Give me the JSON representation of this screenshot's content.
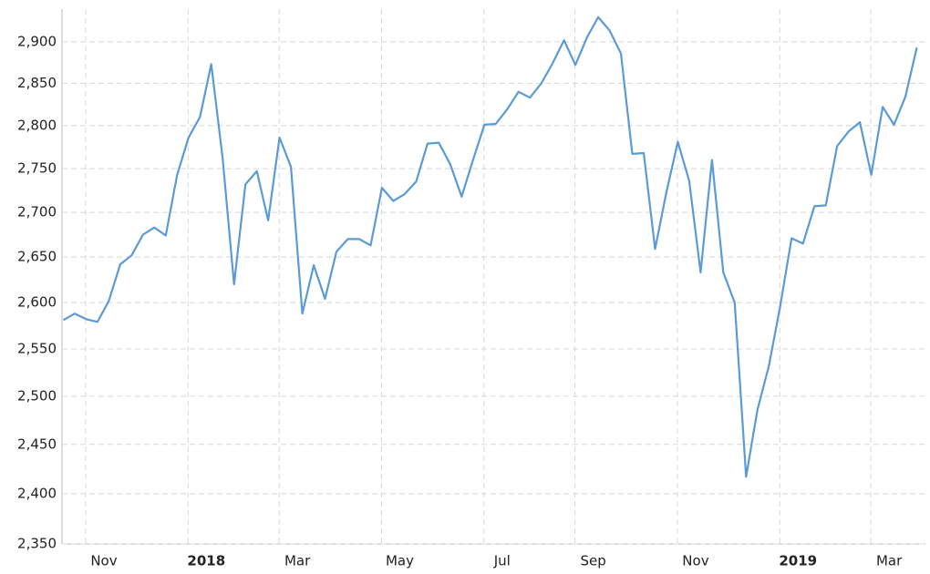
{
  "chart_data": {
    "type": "line",
    "log": true,
    "grid": true,
    "color": "#5b9bd5",
    "categories": [
      null,
      "Nov",
      null,
      null,
      null,
      null,
      null,
      null,
      null,
      null,
      "2018",
      null,
      null,
      null,
      null,
      null,
      null,
      null,
      "Mar",
      null,
      null,
      null,
      null,
      null,
      null,
      null,
      null,
      "May",
      null,
      null,
      null,
      null,
      null,
      null,
      null,
      null,
      "Jul",
      null,
      null,
      null,
      null,
      null,
      null,
      null,
      "Sep",
      null,
      null,
      null,
      null,
      null,
      null,
      null,
      null,
      "Nov",
      null,
      null,
      null,
      null,
      null,
      null,
      null,
      null,
      "2019",
      null,
      null,
      null,
      null,
      null,
      null,
      null,
      "Mar",
      null,
      null,
      null,
      null,
      null
    ],
    "values": [
      2581,
      2588,
      2582,
      2579,
      2602,
      2642,
      2652,
      2675,
      2683,
      2674,
      2743,
      2786,
      2810,
      2873,
      2762,
      2620,
      2732,
      2747,
      2691,
      2786,
      2752,
      2588,
      2641,
      2604,
      2656,
      2670,
      2670,
      2663,
      2728,
      2713,
      2721,
      2735,
      2779,
      2780,
      2755,
      2718,
      2760,
      2801,
      2802,
      2819,
      2840,
      2833,
      2850,
      2874,
      2902,
      2872,
      2905,
      2930,
      2914,
      2886,
      2767,
      2768,
      2659,
      2723,
      2781,
      2736,
      2633,
      2760,
      2633,
      2600,
      2417,
      2486,
      2532,
      2596,
      2671,
      2665,
      2707,
      2708,
      2776,
      2793,
      2804,
      2743,
      2822,
      2801,
      2834,
      2893
    ],
    "ylim": [
      2350,
      2940
    ],
    "yticks": [
      {
        "value": 2350,
        "label": "2,350"
      },
      {
        "value": 2400,
        "label": "2,400"
      },
      {
        "value": 2450,
        "label": "2,450"
      },
      {
        "value": 2500,
        "label": "2,500"
      },
      {
        "value": 2550,
        "label": "2,550"
      },
      {
        "value": 2600,
        "label": "2,600"
      },
      {
        "value": 2650,
        "label": "2,650"
      },
      {
        "value": 2700,
        "label": "2,700"
      },
      {
        "value": 2750,
        "label": "2,750"
      },
      {
        "value": 2800,
        "label": "2,800"
      },
      {
        "value": 2850,
        "label": "2,850"
      },
      {
        "value": 2900,
        "label": "2,900"
      }
    ]
  }
}
